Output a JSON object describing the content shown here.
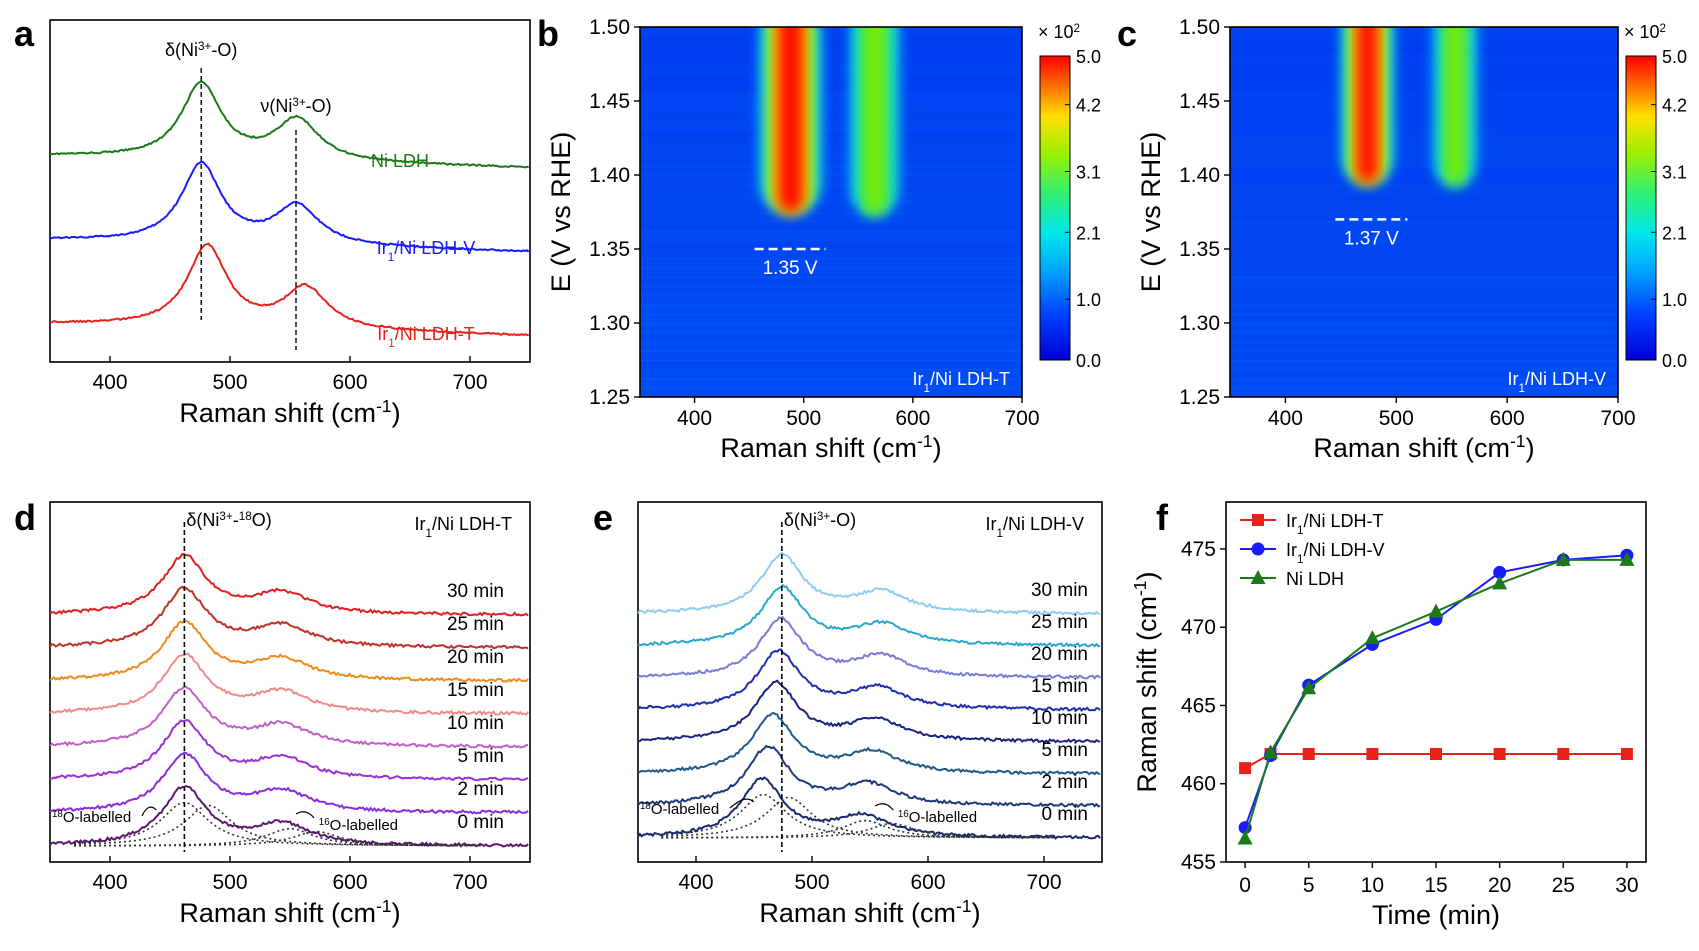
{
  "panel_labels": [
    "a",
    "b",
    "c",
    "d",
    "e",
    "f"
  ],
  "colors": {
    "green": "#1a7a1a",
    "blue": "#1a1aff",
    "red": "#e8211d",
    "black": "#000000"
  },
  "chart_data": [
    {
      "id": "a",
      "type": "line",
      "xlabel": "Raman shift (cm",
      "xlabel_sup": "-1",
      "xlabel_end": ")",
      "xlim": [
        350,
        750
      ],
      "xticks": [
        400,
        500,
        600,
        700
      ],
      "vlines": [
        476,
        555
      ],
      "annotations": [
        {
          "pre": "δ(Ni",
          "sup": "3+",
          "post": "-O)",
          "x": 476
        },
        {
          "pre": "ν(Ni",
          "sup": "3+",
          "post": "-O)",
          "x": 555
        }
      ],
      "series": [
        {
          "name": "Ni LDH",
          "base": "Ni LDH",
          "sub": "",
          "tail": "",
          "color": "#1a7a1a",
          "offset": 2.05,
          "peaks": [
            [
              476,
              1.0,
              20
            ],
            [
              556,
              0.55,
              22
            ]
          ]
        },
        {
          "name": "Ir1/Ni LDH-V",
          "base": "Ir",
          "sub": "1",
          "tail": "/Ni LDH-V",
          "color": "#1a1aff",
          "offset": 1.0,
          "peaks": [
            [
              476,
              1.05,
              20
            ],
            [
              556,
              0.52,
              22
            ]
          ]
        },
        {
          "name": "Ir1/Ni LDH-T",
          "base": "Ir",
          "sub": "1",
          "tail": "/Ni LDH-T",
          "color": "#e8211d",
          "offset": 0.0,
          "peaks": [
            [
              481,
              1.08,
              20
            ],
            [
              563,
              0.55,
              22
            ]
          ]
        }
      ]
    },
    {
      "id": "b",
      "type": "heatmap",
      "ylabel": "E (V vs RHE)",
      "xlabel": "Raman shift (cm",
      "xlabel_sup": "-1",
      "xlabel_end": ")",
      "xlim": [
        350,
        700
      ],
      "ylim": [
        1.25,
        1.5
      ],
      "xticks": [
        400,
        500,
        600,
        700
      ],
      "yticks": [
        1.25,
        1.3,
        1.35,
        1.4,
        1.45,
        1.5
      ],
      "onset_label": "1.35 V",
      "onset": 1.35,
      "onset_x": [
        455,
        520
      ],
      "sample": {
        "base": "Ir",
        "sub": "1",
        "tail": "/Ni LDH-T"
      },
      "peaks": [
        [
          488,
          16,
          5.0
        ],
        [
          565,
          14,
          3.0
        ]
      ],
      "colorbar": {
        "title": "× 10",
        "title_sup": "2",
        "ticks": [
          "0.0",
          "1.0",
          "2.1",
          "3.1",
          "4.2",
          "5.0"
        ],
        "values": [
          0,
          1.0,
          2.1,
          3.1,
          4.2,
          5.0
        ]
      }
    },
    {
      "id": "c",
      "type": "heatmap",
      "ylabel": "E (V vs RHE)",
      "xlabel": "Raman shift (cm",
      "xlabel_sup": "-1",
      "xlabel_end": ")",
      "xlim": [
        350,
        700
      ],
      "ylim": [
        1.25,
        1.5
      ],
      "xticks": [
        400,
        500,
        600,
        700
      ],
      "yticks": [
        1.25,
        1.3,
        1.35,
        1.4,
        1.45,
        1.5
      ],
      "onset_label": "1.37 V",
      "onset": 1.37,
      "onset_x": [
        445,
        510
      ],
      "sample": {
        "base": "Ir",
        "sub": "1",
        "tail": "/Ni LDH-V"
      },
      "peaks": [
        [
          474,
          13,
          5.0
        ],
        [
          553,
          12,
          2.8
        ]
      ],
      "colorbar": {
        "title": "× 10",
        "title_sup": "2",
        "ticks": [
          "0.0",
          "1.0",
          "2.1",
          "3.1",
          "4.2",
          "5.0"
        ],
        "values": [
          0,
          1.0,
          2.1,
          3.1,
          4.2,
          5.0
        ]
      }
    },
    {
      "id": "d",
      "type": "line",
      "xlabel": "Raman shift (cm",
      "xlabel_sup": "-1",
      "xlabel_end": ")",
      "xlim": [
        350,
        750
      ],
      "xticks": [
        400,
        500,
        600,
        700
      ],
      "vline": 462,
      "annotation": {
        "pre": "δ(Ni",
        "sup": "3+",
        "mid": "-",
        "sup2": "18",
        "post": "O)"
      },
      "sample": {
        "base": "Ir",
        "sub": "1",
        "tail": "/Ni LDH-T"
      },
      "labelled_left": {
        "sup": "18",
        "text": "O-labelled"
      },
      "labelled_right": {
        "sup": "16",
        "text": "O-labelled"
      },
      "series": [
        {
          "name": "0 min",
          "color": "#5a1a6e",
          "peak": 462
        },
        {
          "name": "2 min",
          "color": "#8a2be2",
          "peak": 462
        },
        {
          "name": "5 min",
          "color": "#9b30d9",
          "peak": 462
        },
        {
          "name": "10 min",
          "color": "#c060c8",
          "peak": 462
        },
        {
          "name": "15 min",
          "color": "#f08a8a",
          "peak": 462
        },
        {
          "name": "20 min",
          "color": "#f08a1a",
          "peak": 462
        },
        {
          "name": "25 min",
          "color": "#c0302a",
          "peak": 462
        },
        {
          "name": "30 min",
          "color": "#e02020",
          "peak": 462
        }
      ]
    },
    {
      "id": "e",
      "type": "line",
      "xlabel": "Raman shift (cm",
      "xlabel_sup": "-1",
      "xlabel_end": ")",
      "xlim": [
        350,
        750
      ],
      "xticks": [
        400,
        500,
        600,
        700
      ],
      "vline": 474,
      "annotation": {
        "pre": "δ(Ni",
        "sup": "3+",
        "post": "-O)"
      },
      "sample": {
        "base": "Ir",
        "sub": "1",
        "tail": "/Ni LDH-V"
      },
      "labelled_left": {
        "sup": "18",
        "text": "O-labelled"
      },
      "labelled_right": {
        "sup": "16",
        "text": "O-labelled"
      },
      "series": [
        {
          "name": "0 min",
          "color": "#1a2a6e",
          "peak": 457
        },
        {
          "name": "2 min",
          "color": "#1e3a7a",
          "peak": 462
        },
        {
          "name": "5 min",
          "color": "#1f5a8a",
          "peak": 466
        },
        {
          "name": "10 min",
          "color": "#1a237e",
          "peak": 469
        },
        {
          "name": "15 min",
          "color": "#1f2fb0",
          "peak": 471
        },
        {
          "name": "20 min",
          "color": "#7a7ad8",
          "peak": 473
        },
        {
          "name": "25 min",
          "color": "#28a8d0",
          "peak": 474
        },
        {
          "name": "30 min",
          "color": "#8ecdf0",
          "peak": 474
        }
      ]
    },
    {
      "id": "f",
      "type": "line",
      "xlabel": "Time (min)",
      "ylabel": "Raman shift (cm",
      "ylabel_sup": "-1",
      "ylabel_end": ")",
      "xlim": [
        -1.5,
        31.5
      ],
      "ylim": [
        455,
        478
      ],
      "xticks": [
        0,
        5,
        10,
        15,
        20,
        25,
        30
      ],
      "yticks": [
        455,
        460,
        465,
        470,
        475
      ],
      "x": [
        0,
        2,
        5,
        10,
        15,
        20,
        25,
        30
      ],
      "series": [
        {
          "name": "Ir1/Ni LDH-T",
          "base": "Ir",
          "sub": "1",
          "tail": "/Ni LDH-T",
          "color": "#e8211d",
          "marker": "square",
          "values": [
            461.0,
            461.9,
            461.9,
            461.9,
            461.9,
            461.9,
            461.9,
            461.9
          ]
        },
        {
          "name": "Ir1/Ni LDH-V",
          "base": "Ir",
          "sub": "1",
          "tail": "/Ni LDH-V",
          "color": "#1a1aff",
          "marker": "circle",
          "values": [
            457.2,
            461.8,
            466.3,
            468.9,
            470.5,
            473.5,
            474.3,
            474.6
          ]
        },
        {
          "name": "Ni LDH",
          "base": "Ni LDH",
          "sub": "",
          "tail": "",
          "color": "#1a7a1a",
          "marker": "triangle",
          "values": [
            456.5,
            462.0,
            466.1,
            469.3,
            471.0,
            472.8,
            474.3,
            474.3
          ]
        }
      ]
    }
  ]
}
